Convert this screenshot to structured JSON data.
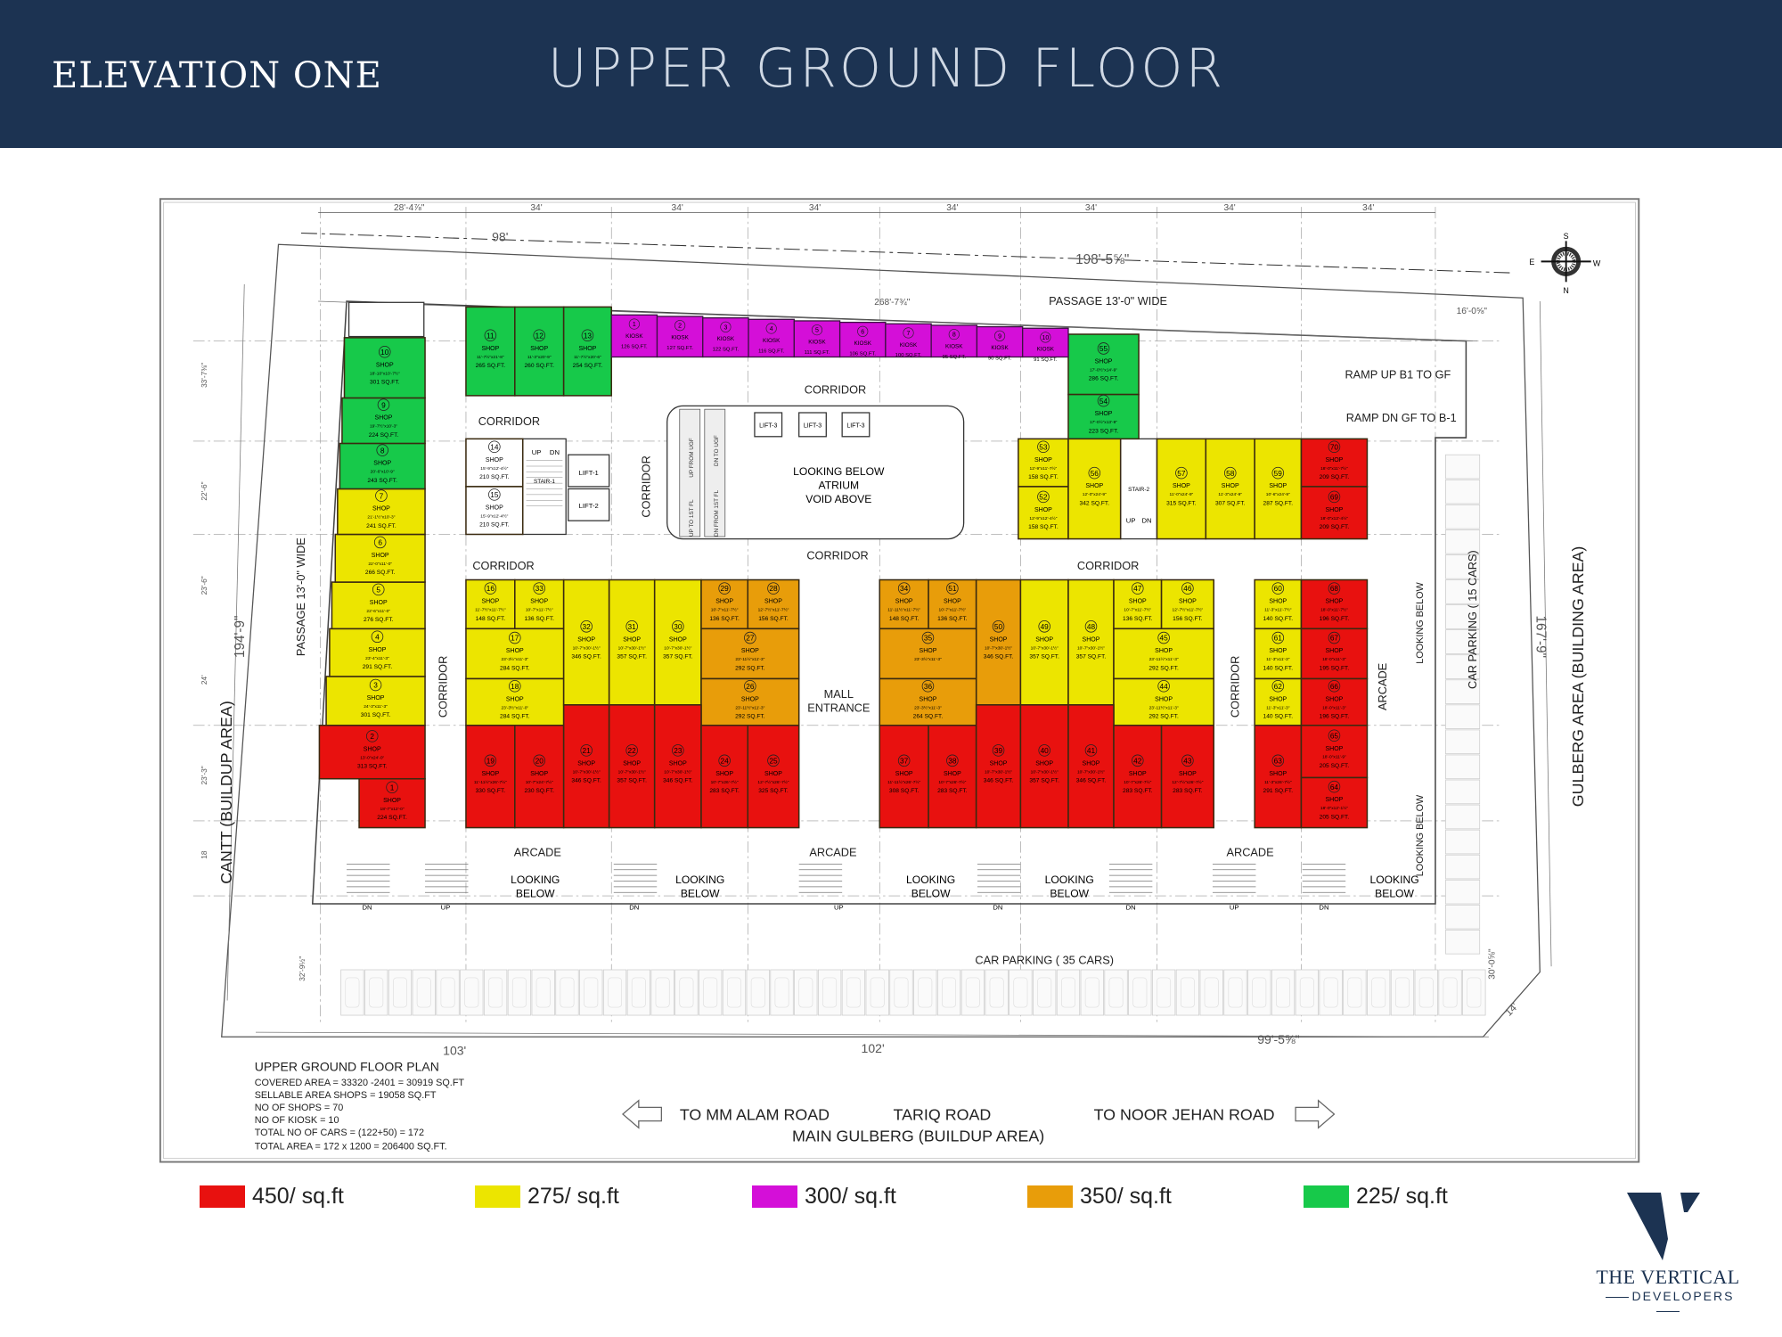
{
  "header": {
    "brand": "ELEVATION ONE",
    "title": "UPPER GROUND FLOOR"
  },
  "legend": [
    {
      "rate": "450",
      "label": "450/ sq.ft",
      "color": "#e8110f"
    },
    {
      "rate": "275",
      "label": "275/ sq.ft",
      "color": "#ece500"
    },
    {
      "rate": "300",
      "label": "300/ sq.ft",
      "color": "#d40fd8"
    },
    {
      "rate": "350",
      "label": "350/ sq.ft",
      "color": "#e89d0a"
    },
    {
      "rate": "225",
      "label": "225/ sq.ft",
      "color": "#17c94a"
    }
  ],
  "logo": {
    "line1": "THE VERTICAL",
    "line2": "DEVELOPERS"
  },
  "plan": {
    "corridor": "CORRIDOR",
    "arcade": "ARCADE",
    "looking_below": [
      "LOOKING",
      "BELOW"
    ],
    "looking_below_vertical": "LOOKING BELOW",
    "mall_entrance": [
      "MALL",
      "ENTRANCE"
    ],
    "atrium": [
      "LOOKING BELOW",
      "ATRIUM",
      "VOID ABOVE"
    ],
    "passage_top": "PASSAGE  13'-0\" WIDE",
    "passage_left": "PASSAGE  13'-0\" WIDE",
    "ramp_up": "RAMP UP B1 TO GF",
    "ramp_dn": "RAMP DN GF TO B-1",
    "parking_right": "CAR PARKING ( 15 CARS)",
    "parking_bottom": "CAR PARKING ( 35 CARS)",
    "west_label": "CANTT (BUILDUP AREA)",
    "east_label": "GULBERG AREA (BUILDING AREA)",
    "lifts": [
      "LIFT-1",
      "LIFT-2",
      "LIFT-3",
      "LIFT-3",
      "LIFT-3"
    ],
    "stairs": [
      "STAIR-1",
      "STAIR-2"
    ],
    "escalators": [
      "UP TO 1ST FL",
      "DN FROM 1ST FL",
      "UP FROM UGF",
      "DN TO UGF"
    ],
    "up": "UP",
    "dn": "DN",
    "compass": {
      "n": "N",
      "s": "S",
      "e": "E",
      "w": "W"
    },
    "dimensions": {
      "top_bays": [
        "28'-4⅞\"",
        "34'",
        "34'",
        "34'",
        "34'",
        "34'",
        "34'",
        "34'"
      ],
      "d98": "98'",
      "d198": "198'-5⅝\"",
      "d268": "268'-7¾\"",
      "d194": "194'-9\"",
      "d167": "167'-9\"",
      "d103": "103'",
      "d102": "102'",
      "d99": "99'-5⅝\"",
      "d16": "16'-0⅝\"",
      "d30": "30'-0⅝\"",
      "d14": "14'",
      "left_bays": [
        "33'-7⅜\"",
        "22'-6\"",
        "23'-6\"",
        "24'",
        "23'-3\"",
        "18",
        "32'-9½\""
      ]
    },
    "notes": {
      "title": "UPPER GROUND FLOOR PLAN",
      "lines": [
        "COVERED AREA = 33320 -2401 = 30919 SQ.FT",
        "SELLABLE AREA SHOPS = 19058 SQ.FT",
        "NO OF SHOPS = 70",
        "NO OF KIOSK = 10",
        "TOTAL NO OF CARS = (122+50) = 172",
        "TOTAL AREA = 172 x 1200 = 206400 SQ.FT."
      ]
    },
    "roads": {
      "left": "TO MM ALAM ROAD",
      "center": "TARIQ ROAD",
      "right": "TO NOOR JEHAN ROAD",
      "main": "MAIN GULBERG (BUILDUP AREA)"
    }
  },
  "kiosks": [
    {
      "no": "1",
      "type": "KIOSK",
      "area": "126 SQ.FT."
    },
    {
      "no": "2",
      "type": "KIOSK",
      "area": "127 SQ.FT."
    },
    {
      "no": "3",
      "type": "KIOSK",
      "area": "122 SQ.FT."
    },
    {
      "no": "4",
      "type": "KIOSK",
      "area": "116 SQ.FT."
    },
    {
      "no": "5",
      "type": "KIOSK",
      "area": "111 SQ.FT."
    },
    {
      "no": "6",
      "type": "KIOSK",
      "area": "106 SQ.FT."
    },
    {
      "no": "7",
      "type": "KIOSK",
      "area": "100 SQ.FT."
    },
    {
      "no": "8",
      "type": "KIOSK",
      "area": "95 SQ.FT."
    },
    {
      "no": "9",
      "type": "KIOSK",
      "area": "90 SQ.FT."
    },
    {
      "no": "10",
      "type": "KIOSK",
      "area": "91 SQ.FT."
    }
  ],
  "shops": [
    {
      "no": "1",
      "type": "SHOP",
      "dims": "18'-7\"x12'-0\"",
      "area": "224 SQ.FT.",
      "rate": "450"
    },
    {
      "no": "2",
      "type": "SHOP",
      "dims": "13'-0\"x24'-0\"",
      "area": "313 SQ.FT.",
      "rate": "450"
    },
    {
      "no": "3",
      "type": "SHOP",
      "dims": "24'-3\"x11'-3\"",
      "area": "301 SQ.FT.",
      "rate": "275"
    },
    {
      "no": "4",
      "type": "SHOP",
      "dims": "23'-4\"x11'-3\"",
      "area": "291 SQ.FT.",
      "rate": "275"
    },
    {
      "no": "5",
      "type": "SHOP",
      "dims": "22'-6\"x11'-0\"",
      "area": "276 SQ.FT.",
      "rate": "275"
    },
    {
      "no": "6",
      "type": "SHOP",
      "dims": "22'-0\"x11'-0\"",
      "area": "266 SQ.FT.",
      "rate": "275"
    },
    {
      "no": "7",
      "type": "SHOP",
      "dims": "21'-1½\"x10'-3\"",
      "area": "241 SQ.FT.",
      "rate": "275"
    },
    {
      "no": "8",
      "type": "SHOP",
      "dims": "20'-6\"x10'-9\"",
      "area": "243 SQ.FT.",
      "rate": "225"
    },
    {
      "no": "9",
      "type": "SHOP",
      "dims": "19'-7½\"x10'-3\"",
      "area": "224 SQ.FT.",
      "rate": "225"
    },
    {
      "no": "10",
      "type": "SHOP",
      "dims": "18'-10\"x10'-7½\"",
      "area": "301 SQ.FT.",
      "rate": "225"
    },
    {
      "no": "11",
      "type": "SHOP",
      "dims": "11'-7½\"x21'-8\"",
      "area": "265 SQ.FT.",
      "rate": "225"
    },
    {
      "no": "12",
      "type": "SHOP",
      "dims": "11'-3\"x20'-9\"",
      "area": "260 SQ.FT.",
      "rate": "225"
    },
    {
      "no": "13",
      "type": "SHOP",
      "dims": "11'-7½\"x20'-6\"",
      "area": "254 SQ.FT.",
      "rate": "225"
    },
    {
      "no": "14",
      "type": "SHOP",
      "dims": "15'-9\"x12'-4½\"",
      "area": "210 SQ.FT.",
      "rate": ""
    },
    {
      "no": "15",
      "type": "SHOP",
      "dims": "15'-9\"x12'-4½\"",
      "area": "210 SQ.FT.",
      "rate": ""
    },
    {
      "no": "16",
      "type": "SHOP",
      "dims": "11'-7½\"x11'-7½\"",
      "area": "148 SQ.FT.",
      "rate": "275"
    },
    {
      "no": "33",
      "type": "SHOP",
      "dims": "10'-7\"x11'-7½\"",
      "area": "136 SQ.FT.",
      "rate": "275"
    },
    {
      "no": "17",
      "type": "SHOP",
      "dims": "23'-3½\"x11'-3\"",
      "area": "284 SQ.FT.",
      "rate": "275"
    },
    {
      "no": "18",
      "type": "SHOP",
      "dims": "23'-3½\"x11'-0\"",
      "area": "284 SQ.FT.",
      "rate": "275"
    },
    {
      "no": "32",
      "type": "SHOP",
      "dims": "10'-7\"x30'-1½\"",
      "area": "346 SQ.FT.",
      "rate": "275"
    },
    {
      "no": "31",
      "type": "SHOP",
      "dims": "10'-7\"x30'-1½\"",
      "area": "357 SQ.FT.",
      "rate": "275"
    },
    {
      "no": "30",
      "type": "SHOP",
      "dims": "10'-7\"x30'-1½\"",
      "area": "357 SQ.FT.",
      "rate": "275"
    },
    {
      "no": "29",
      "type": "SHOP",
      "dims": "10'-7\"x11'-7½\"",
      "area": "136 SQ.FT.",
      "rate": "350"
    },
    {
      "no": "28",
      "type": "SHOP",
      "dims": "12'-7½\"x11'-7½\"",
      "area": "156 SQ.FT.",
      "rate": "350"
    },
    {
      "no": "27",
      "type": "SHOP",
      "dims": "23'-11½\"x11'-3\"",
      "area": "292 SQ.FT.",
      "rate": "350"
    },
    {
      "no": "26",
      "type": "SHOP",
      "dims": "23'-11½\"x11'-3\"",
      "area": "292 SQ.FT.",
      "rate": "350"
    },
    {
      "no": "19",
      "type": "SHOP",
      "dims": "11'-11½\"x26'-7½\"",
      "area": "330 SQ.FT.",
      "rate": "450"
    },
    {
      "no": "20",
      "type": "SHOP",
      "dims": "10'-7\"x24'-7½\"",
      "area": "230 SQ.FT.",
      "rate": "450"
    },
    {
      "no": "21",
      "type": "SHOP",
      "dims": "10'-7\"x30'-1½\"",
      "area": "346 SQ.FT.",
      "rate": "450"
    },
    {
      "no": "22",
      "type": "SHOP",
      "dims": "10'-7\"x30'-1½\"",
      "area": "357 SQ.FT.",
      "rate": "450"
    },
    {
      "no": "23",
      "type": "SHOP",
      "dims": "10'-7\"x30'-1½\"",
      "area": "346 SQ.FT.",
      "rate": "450"
    },
    {
      "no": "24",
      "type": "SHOP",
      "dims": "10'-7\"x26'-7½\"",
      "area": "283 SQ.FT.",
      "rate": "450"
    },
    {
      "no": "25",
      "type": "SHOP",
      "dims": "12'-7½\"x26'-7½\"",
      "area": "325 SQ.FT.",
      "rate": "450"
    },
    {
      "no": "34",
      "type": "SHOP",
      "dims": "11'-11½\"x11'-7½\"",
      "area": "148 SQ.FT.",
      "rate": "350"
    },
    {
      "no": "51",
      "type": "SHOP",
      "dims": "10'-7\"x11'-7½\"",
      "area": "136 SQ.FT.",
      "rate": "350"
    },
    {
      "no": "50",
      "type": "SHOP",
      "dims": "10'-7\"x30'-1½\"",
      "area": "346 SQ.FT.",
      "rate": "350"
    },
    {
      "no": "35",
      "type": "SHOP",
      "dims": "23'-3½\"x11'-3\"",
      "area": "",
      "rate": "350"
    },
    {
      "no": "36",
      "type": "SHOP",
      "dims": "23'-3½\"x11'-3\"",
      "area": "264 SQ.FT.",
      "rate": "350"
    },
    {
      "no": "49",
      "type": "SHOP",
      "dims": "10'-7\"x30'-1½\"",
      "area": "357 SQ.FT.",
      "rate": "275"
    },
    {
      "no": "48",
      "type": "SHOP",
      "dims": "10'-7\"x30'-1½\"",
      "area": "357 SQ.FT.",
      "rate": "275"
    },
    {
      "no": "47",
      "type": "SHOP",
      "dims": "10'-7\"x11'-7½\"",
      "area": "136 SQ.FT.",
      "rate": "275"
    },
    {
      "no": "46",
      "type": "SHOP",
      "dims": "12'-7½\"x11'-7½\"",
      "area": "156 SQ.FT.",
      "rate": "275"
    },
    {
      "no": "45",
      "type": "SHOP",
      "dims": "23'-11½\"x11'-3\"",
      "area": "292 SQ.FT.",
      "rate": "275"
    },
    {
      "no": "44",
      "type": "SHOP",
      "dims": "23'-11½\"x11'-3\"",
      "area": "292 SQ.FT.",
      "rate": "275"
    },
    {
      "no": "37",
      "type": "SHOP",
      "dims": "11'-11½\"x26'-7½\"",
      "area": "308 SQ.FT.",
      "rate": "450"
    },
    {
      "no": "38",
      "type": "SHOP",
      "dims": "10'-7\"x26'-7½\"",
      "area": "283 SQ.FT.",
      "rate": "450"
    },
    {
      "no": "39",
      "type": "SHOP",
      "dims": "10'-7\"x30'-1½\"",
      "area": "346 SQ.FT.",
      "rate": "450"
    },
    {
      "no": "40",
      "type": "SHOP",
      "dims": "10'-7\"x30'-1½\"",
      "area": "357 SQ.FT.",
      "rate": "450"
    },
    {
      "no": "41",
      "type": "SHOP",
      "dims": "10'-7\"x30'-1½\"",
      "area": "346 SQ.FT.",
      "rate": "450"
    },
    {
      "no": "42",
      "type": "SHOP",
      "dims": "10'-7\"x26'-7½\"",
      "area": "283 SQ.FT.",
      "rate": "450"
    },
    {
      "no": "43",
      "type": "SHOP",
      "dims": "12'-7½\"x26'-7½\"",
      "area": "283 SQ.FT.",
      "rate": "450"
    },
    {
      "no": "55",
      "type": "SHOP",
      "dims": "17'-0½\"x14'-9\"",
      "area": "286 SQ.FT.",
      "rate": "225"
    },
    {
      "no": "54",
      "type": "SHOP",
      "dims": "17'-0½\"x13'-9\"",
      "area": "223 SQ.FT.",
      "rate": "225"
    },
    {
      "no": "53",
      "type": "SHOP",
      "dims": "12'-9\"x11'-7½\"",
      "area": "158 SQ.FT.",
      "rate": "275"
    },
    {
      "no": "52",
      "type": "SHOP",
      "dims": "12'-9\"x12'-4½\"",
      "area": "158 SQ.FT.",
      "rate": "275"
    },
    {
      "no": "56",
      "type": "SHOP",
      "dims": "12'-0\"x24'-9\"",
      "area": "342 SQ.FT.",
      "rate": "275"
    },
    {
      "no": "57",
      "type": "SHOP",
      "dims": "11'-0\"x24'-9\"",
      "area": "315 SQ.FT.",
      "rate": "275"
    },
    {
      "no": "58",
      "type": "SHOP",
      "dims": "11'-3\"x24'-9\"",
      "area": "307 SQ.FT.",
      "rate": "275"
    },
    {
      "no": "59",
      "type": "SHOP",
      "dims": "10'-6\"x24'-9\"",
      "area": "287 SQ.FT.",
      "rate": "275"
    },
    {
      "no": "70",
      "type": "SHOP",
      "dims": "18'-0\"x11'-7½\"",
      "area": "209 SQ.FT.",
      "rate": "450"
    },
    {
      "no": "69",
      "type": "SHOP",
      "dims": "18'-0\"x12'-4½\"",
      "area": "209 SQ.FT.",
      "rate": "450"
    },
    {
      "no": "60",
      "type": "SHOP",
      "dims": "11'-3\"x11'-7½\"",
      "area": "140 SQ.FT.",
      "rate": "275"
    },
    {
      "no": "61",
      "type": "SHOP",
      "dims": "11'-3\"x11'-3\"",
      "area": "140 SQ.FT.",
      "rate": "275"
    },
    {
      "no": "62",
      "type": "SHOP",
      "dims": "11'-3\"x11'-3\"",
      "area": "140 SQ.FT.",
      "rate": "275"
    },
    {
      "no": "63",
      "type": "SHOP",
      "dims": "11'-3\"x26'-7½\"",
      "area": "291 SQ.FT.",
      "rate": "450"
    },
    {
      "no": "68",
      "type": "SHOP",
      "dims": "18'-0\"x11'-7½\"",
      "area": "196 SQ.FT.",
      "rate": "450"
    },
    {
      "no": "67",
      "type": "SHOP",
      "dims": "18'-0\"x11'-3\"",
      "area": "195 SQ.FT.",
      "rate": "450"
    },
    {
      "no": "66",
      "type": "SHOP",
      "dims": "18'-0\"x11'-3\"",
      "area": "196 SQ.FT.",
      "rate": "450"
    },
    {
      "no": "65",
      "type": "SHOP",
      "dims": "18'-0\"x11'-9\"",
      "area": "205 SQ.FT.",
      "rate": "450"
    },
    {
      "no": "64",
      "type": "SHOP",
      "dims": "18'-0\"x12'-1½\"",
      "area": "205 SQ.FT.",
      "rate": "450"
    }
  ]
}
